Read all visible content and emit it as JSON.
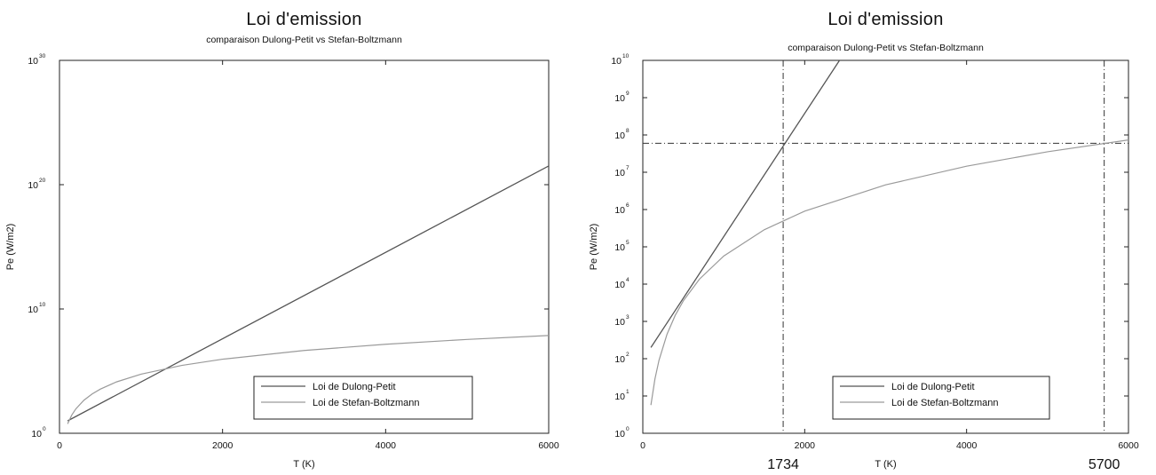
{
  "colors": {
    "dulong_petit": "#555555",
    "stefan_boltzmann": "#9a9a9a",
    "axis": "#222222",
    "guide_lines": "#333333"
  },
  "chart_data": [
    {
      "type": "line",
      "title": "Loi d'emission",
      "subtitle": "comparaison Dulong-Petit vs Stefan-Boltzmann",
      "xlabel": "T (K)",
      "ylabel": "Pe (W/m2)",
      "xlim": [
        0,
        6000
      ],
      "ylim": [
        1,
        1e+30
      ],
      "yscale": "log",
      "grid": false,
      "legend_position": "bottom-right",
      "x_ticks": [
        {
          "value": 0,
          "label": "0"
        },
        {
          "value": 2000,
          "label": "2000"
        },
        {
          "value": 4000,
          "label": "4000"
        },
        {
          "value": 6000,
          "label": "6000"
        }
      ],
      "y_ticks": [
        {
          "value": 1,
          "base": "10",
          "exp": "0"
        },
        {
          "value": 10000000000.0,
          "base": "10",
          "exp": "10"
        },
        {
          "value": 1e+20,
          "base": "10",
          "exp": "20"
        },
        {
          "value": 1e+30,
          "base": "10",
          "exp": "30"
        }
      ],
      "series": [
        {
          "name": "Loi de Dulong-Petit",
          "x": [
            100,
            6000
          ],
          "y": [
            10,
            3.2e+21
          ]
        },
        {
          "name": "Loi de Stefan-Boltzmann",
          "x": [
            100,
            150,
            200,
            300,
            400,
            500,
            700,
            1000,
            1500,
            2000,
            3000,
            4000,
            5000,
            6000
          ],
          "y": [
            5.7,
            28.7,
            90.7,
            459,
            1452,
            3544,
            13614,
            56700,
            287044,
            907200,
            4592700,
            14515200,
            35437500,
            73483200
          ]
        }
      ]
    },
    {
      "type": "line",
      "title": "Loi d'emission",
      "subtitle": "comparaison Dulong-Petit vs Stefan-Boltzmann",
      "xlabel": "T (K)",
      "ylabel": "Pe (W/m2)",
      "xlim": [
        0,
        6000
      ],
      "ylim": [
        1,
        10000000000.0
      ],
      "yscale": "log",
      "grid": false,
      "legend_position": "bottom-right",
      "x_ticks": [
        {
          "value": 0,
          "label": "0"
        },
        {
          "value": 2000,
          "label": "2000"
        },
        {
          "value": 4000,
          "label": "4000"
        },
        {
          "value": 6000,
          "label": "6000"
        }
      ],
      "y_ticks": [
        {
          "value": 1,
          "base": "10",
          "exp": "0"
        },
        {
          "value": 10,
          "base": "10",
          "exp": "1"
        },
        {
          "value": 100,
          "base": "10",
          "exp": "2"
        },
        {
          "value": 1000,
          "base": "10",
          "exp": "3"
        },
        {
          "value": 10000.0,
          "base": "10",
          "exp": "4"
        },
        {
          "value": 100000.0,
          "base": "10",
          "exp": "5"
        },
        {
          "value": 1000000.0,
          "base": "10",
          "exp": "6"
        },
        {
          "value": 10000000.0,
          "base": "10",
          "exp": "7"
        },
        {
          "value": 100000000.0,
          "base": "10",
          "exp": "8"
        },
        {
          "value": 1000000000.0,
          "base": "10",
          "exp": "9"
        },
        {
          "value": 10000000000.0,
          "base": "10",
          "exp": "10"
        }
      ],
      "annotations": {
        "vertical_lines": [
          {
            "x": 1734,
            "label": "1734"
          },
          {
            "x": 5700,
            "label": "5700"
          }
        ],
        "horizontal_line": {
          "y": 60000000.0
        }
      },
      "series": [
        {
          "name": "Loi de Dulong-Petit",
          "x": [
            100,
            2430
          ],
          "y": [
            200,
            10000000000.0
          ]
        },
        {
          "name": "Loi de Stefan-Boltzmann",
          "x": [
            100,
            150,
            200,
            300,
            400,
            500,
            700,
            1000,
            1500,
            2000,
            3000,
            4000,
            5000,
            6000
          ],
          "y": [
            5.7,
            28.7,
            90.7,
            459,
            1452,
            3544,
            13614,
            56700,
            287044,
            907200,
            4592700,
            14515200,
            35437500,
            73483200
          ]
        }
      ]
    }
  ]
}
